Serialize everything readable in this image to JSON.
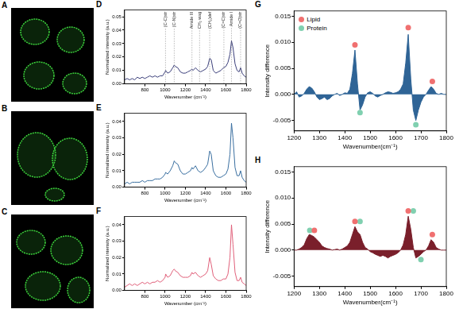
{
  "images": [
    {
      "panel": "A",
      "type": "image"
    },
    {
      "panel": "B",
      "type": "image"
    },
    {
      "panel": "C",
      "type": "image"
    }
  ],
  "chart_data": [
    {
      "panel": "D",
      "type": "line",
      "x_label": "Wavenumber (cm⁻¹)",
      "y_label": "Normalized intensity (a.u.)",
      "x": [
        600,
        625,
        650,
        675,
        700,
        725,
        750,
        775,
        800,
        825,
        850,
        875,
        900,
        925,
        950,
        975,
        1000,
        1005,
        1025,
        1050,
        1075,
        1090,
        1100,
        1125,
        1150,
        1175,
        1200,
        1225,
        1250,
        1265,
        1275,
        1300,
        1325,
        1350,
        1375,
        1400,
        1420,
        1440,
        1455,
        1475,
        1500,
        1525,
        1550,
        1575,
        1600,
        1620,
        1640,
        1655,
        1670,
        1690,
        1710,
        1730,
        1745,
        1760,
        1780,
        1800
      ],
      "series": [
        {
          "color": "#3b3f7a",
          "values": [
            0.003,
            0.004,
            0.003,
            0.004,
            0.003,
            0.005,
            0.004,
            0.005,
            0.004,
            0.005,
            0.006,
            0.005,
            0.006,
            0.005,
            0.006,
            0.006,
            0.009,
            0.01,
            0.008,
            0.009,
            0.012,
            0.014,
            0.013,
            0.012,
            0.009,
            0.008,
            0.008,
            0.009,
            0.01,
            0.011,
            0.01,
            0.012,
            0.01,
            0.009,
            0.01,
            0.011,
            0.013,
            0.019,
            0.018,
            0.01,
            0.008,
            0.009,
            0.01,
            0.012,
            0.013,
            0.016,
            0.022,
            0.032,
            0.027,
            0.015,
            0.01,
            0.009,
            0.012,
            0.008,
            0.006,
            0.005
          ]
        }
      ],
      "annotations": [
        {
          "x": 1004,
          "label": "(C-C)str"
        },
        {
          "x": 1090,
          "label": "(C-N)str"
        },
        {
          "x": 1265,
          "label": "Amide III"
        },
        {
          "x": 1340,
          "label": "CH₂ wag"
        },
        {
          "x": 1440,
          "label": "(CH₂)def"
        },
        {
          "x": 1580,
          "label": "(C=C)str"
        },
        {
          "x": 1655,
          "label": "Amide I"
        },
        {
          "x": 1745,
          "label": "(C=O)str"
        }
      ],
      "xlim": [
        600,
        1800
      ],
      "xticks": [
        800,
        1000,
        1200,
        1400,
        1600,
        1800
      ],
      "ylim": [
        0,
        0.055
      ],
      "yticks": [
        {
          "value": 0,
          "label": "0.00"
        },
        0.01,
        0.02,
        0.03,
        0.04,
        0.05
      ],
      "grid": false
    },
    {
      "panel": "E",
      "type": "line",
      "x_label": "Wavenumber (cm⁻¹)",
      "y_label": "Normalized intensity (a.u.)",
      "x": [
        600,
        625,
        650,
        675,
        700,
        725,
        750,
        775,
        800,
        825,
        850,
        875,
        900,
        925,
        950,
        975,
        1000,
        1005,
        1025,
        1050,
        1075,
        1090,
        1100,
        1125,
        1150,
        1175,
        1200,
        1225,
        1250,
        1265,
        1275,
        1300,
        1325,
        1350,
        1375,
        1400,
        1420,
        1440,
        1455,
        1475,
        1500,
        1525,
        1550,
        1575,
        1600,
        1620,
        1640,
        1655,
        1670,
        1690,
        1710,
        1730,
        1745,
        1760,
        1780,
        1800
      ],
      "series": [
        {
          "color": "#3a6fa0",
          "values": [
            0.002,
            0.003,
            0.002,
            0.003,
            0.003,
            0.003,
            0.003,
            0.004,
            0.003,
            0.004,
            0.004,
            0.004,
            0.005,
            0.005,
            0.005,
            0.006,
            0.008,
            0.009,
            0.008,
            0.01,
            0.013,
            0.016,
            0.015,
            0.014,
            0.01,
            0.008,
            0.008,
            0.009,
            0.01,
            0.012,
            0.011,
            0.013,
            0.01,
            0.009,
            0.01,
            0.012,
            0.014,
            0.022,
            0.02,
            0.01,
            0.007,
            0.006,
            0.006,
            0.007,
            0.008,
            0.011,
            0.02,
            0.039,
            0.03,
            0.012,
            0.007,
            0.007,
            0.01,
            0.006,
            0.004,
            0.003
          ]
        }
      ],
      "xlim": [
        600,
        1800
      ],
      "xticks": [
        800,
        1000,
        1200,
        1400,
        1600,
        1800
      ],
      "ylim": [
        0,
        0.045
      ],
      "yticks": [
        {
          "value": 0,
          "label": "0.00"
        },
        0.01,
        0.02,
        0.03,
        0.04
      ],
      "grid": false
    },
    {
      "panel": "F",
      "type": "line",
      "x_label": "Wavenumber (cm⁻¹)",
      "y_label": "Normalized intensity (a.u.)",
      "x": [
        600,
        625,
        650,
        675,
        700,
        725,
        750,
        775,
        800,
        825,
        850,
        875,
        900,
        925,
        950,
        975,
        1000,
        1005,
        1025,
        1050,
        1075,
        1090,
        1100,
        1125,
        1150,
        1175,
        1200,
        1225,
        1250,
        1265,
        1275,
        1300,
        1325,
        1350,
        1375,
        1400,
        1420,
        1440,
        1455,
        1475,
        1500,
        1525,
        1550,
        1575,
        1600,
        1620,
        1640,
        1655,
        1670,
        1690,
        1710,
        1730,
        1745,
        1760,
        1780,
        1800
      ],
      "series": [
        {
          "color": "#e0607a",
          "values": [
            0.002,
            0.003,
            0.004,
            0.003,
            0.004,
            0.003,
            0.004,
            0.005,
            0.004,
            0.005,
            0.004,
            0.005,
            0.005,
            0.006,
            0.005,
            0.006,
            0.008,
            0.01,
            0.008,
            0.009,
            0.012,
            0.013,
            0.012,
            0.011,
            0.009,
            0.008,
            0.008,
            0.008,
            0.009,
            0.011,
            0.01,
            0.011,
            0.009,
            0.008,
            0.009,
            0.01,
            0.012,
            0.02,
            0.016,
            0.009,
            0.007,
            0.006,
            0.006,
            0.007,
            0.007,
            0.01,
            0.02,
            0.04,
            0.028,
            0.011,
            0.006,
            0.006,
            0.008,
            0.005,
            0.004,
            0.003
          ]
        }
      ],
      "xlim": [
        600,
        1800
      ],
      "xticks": [
        800,
        1000,
        1200,
        1400,
        1600,
        1800
      ],
      "ylim": [
        0,
        0.045
      ],
      "yticks": [
        {
          "value": 0,
          "label": "0.00"
        },
        0.01,
        0.02,
        0.03,
        0.04
      ],
      "grid": false
    },
    {
      "panel": "G",
      "type": "line",
      "x_label": "Wavenumber(cm⁻¹)",
      "y_label": "Intensity difference",
      "x": [
        1200,
        1210,
        1220,
        1230,
        1240,
        1250,
        1260,
        1270,
        1280,
        1290,
        1300,
        1310,
        1320,
        1330,
        1340,
        1350,
        1360,
        1370,
        1380,
        1390,
        1400,
        1410,
        1420,
        1430,
        1440,
        1450,
        1460,
        1470,
        1480,
        1490,
        1500,
        1510,
        1520,
        1530,
        1540,
        1550,
        1560,
        1570,
        1580,
        1590,
        1600,
        1610,
        1620,
        1630,
        1640,
        1650,
        1660,
        1670,
        1680,
        1690,
        1700,
        1710,
        1720,
        1730,
        1740,
        1750,
        1760,
        1770,
        1780,
        1790,
        1800
      ],
      "series": [
        {
          "type": "area",
          "color": "#2f6496",
          "values": [
            0,
            0.0005,
            -0.0005,
            -0.0003,
            0.0002,
            0.001,
            0.0015,
            0.0012,
            0.0005,
            -0.0005,
            -0.001,
            -0.0008,
            -0.0005,
            -0.001,
            -0.0008,
            -0.0003,
            0,
            0.0002,
            -0.0002,
            0,
            0.0003,
            0.0002,
            0.001,
            0.004,
            0.0085,
            0.002,
            -0.003,
            -0.002,
            -0.0005,
            0.0003,
            0.0005,
            0.0002,
            -0.0003,
            -0.0005,
            -0.0002,
            0,
            0.0003,
            0.0005,
            0.0004,
            0.0002,
            0.0003,
            0.0005,
            0.001,
            0.002,
            0.006,
            0.0115,
            0.003,
            -0.003,
            -0.005,
            -0.003,
            -0.0015,
            -0.0005,
            0,
            0.0008,
            0.0015,
            0.001,
            0.0002,
            0,
            0.0002,
            0,
            0
          ]
        },
        {
          "name": "Lipid",
          "type": "scatter",
          "marker": "circle",
          "color": "#f07070",
          "x": [
            1440,
            1650,
            1745
          ],
          "values": [
            0.0095,
            0.0128,
            0.0025
          ]
        },
        {
          "name": "Protein",
          "type": "scatter",
          "marker": "circle",
          "color": "#80d0b0",
          "x": [
            1460,
            1680
          ],
          "values": [
            -0.0035,
            -0.0058
          ]
        }
      ],
      "legend": "upper left",
      "xlim": [
        1200,
        1800
      ],
      "xticks": [
        1200,
        1300,
        1400,
        1500,
        1600,
        1700,
        1800
      ],
      "ylim": [
        -0.007,
        0.016
      ],
      "yticks": [
        -0.005,
        {
          "value": 0,
          "label": "0.000"
        },
        0.005,
        {
          "value": 0.01,
          "label": "0.010"
        },
        0.015
      ],
      "grid": false
    },
    {
      "panel": "H",
      "type": "line",
      "x_label": "Wavenumber(cm⁻¹)",
      "y_label": "Intensity difference",
      "x": [
        1200,
        1210,
        1220,
        1230,
        1240,
        1250,
        1260,
        1270,
        1280,
        1290,
        1300,
        1310,
        1320,
        1330,
        1340,
        1350,
        1360,
        1370,
        1380,
        1390,
        1400,
        1410,
        1420,
        1430,
        1440,
        1450,
        1460,
        1470,
        1480,
        1490,
        1500,
        1510,
        1520,
        1530,
        1540,
        1550,
        1560,
        1570,
        1580,
        1590,
        1600,
        1610,
        1620,
        1630,
        1640,
        1650,
        1660,
        1670,
        1680,
        1690,
        1700,
        1710,
        1720,
        1730,
        1740,
        1750,
        1760,
        1770,
        1780,
        1790,
        1800
      ],
      "series": [
        {
          "type": "area",
          "color": "#7a1f2b",
          "values": [
            0,
            0,
            0.0002,
            0.0005,
            0.001,
            0.0022,
            0.003,
            0.0028,
            0.0025,
            0.002,
            0.0015,
            0.0008,
            0.0005,
            0.0003,
            0.0002,
            0,
            0.0001,
            0.0002,
            0,
            0.0002,
            0.0005,
            0.0008,
            0.0015,
            0.003,
            0.0045,
            0.0035,
            0.003,
            0.0015,
            0.0005,
            0.0002,
            -0.0003,
            -0.0005,
            -0.0008,
            -0.001,
            -0.0012,
            -0.001,
            -0.0012,
            -0.0015,
            -0.0012,
            -0.001,
            -0.0008,
            -0.0005,
            0,
            0.001,
            0.003,
            0.0065,
            0.004,
            0.0005,
            -0.0015,
            -0.0012,
            -0.0008,
            -0.0003,
            0,
            0.0008,
            0.002,
            0.0015,
            0.0005,
            0.0002,
            0,
            0,
            0
          ]
        },
        {
          "type": "scatter",
          "marker": "circle",
          "color": "#f07070",
          "x": [
            1280,
            1440,
            1650,
            1745
          ],
          "values": [
            0.0038,
            0.0055,
            0.0075,
            0.003
          ]
        },
        {
          "type": "scatter",
          "marker": "circle",
          "color": "#80d0b0",
          "x": [
            1262,
            1460,
            1670,
            1700
          ],
          "values": [
            0.0038,
            0.0055,
            0.0075,
            -0.0018
          ]
        }
      ],
      "xlim": [
        1200,
        1800
      ],
      "xticks": [
        1200,
        1300,
        1400,
        1500,
        1600,
        1700,
        1800
      ],
      "ylim": [
        -0.007,
        0.016
      ],
      "yticks": [
        -0.005,
        {
          "value": 0,
          "label": "0.000"
        },
        0.005,
        {
          "value": 0.01,
          "label": "0.010"
        },
        0.015
      ],
      "grid": false
    }
  ]
}
